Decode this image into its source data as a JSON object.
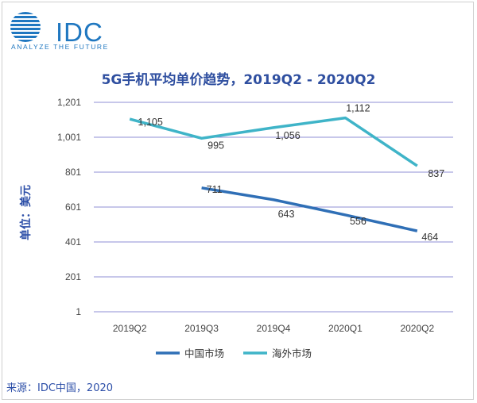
{
  "logo": {
    "brand": "IDC",
    "tagline": "ANALYZE THE FUTURE"
  },
  "source": "来源：IDC中国，2020",
  "colors": {
    "china": "#2f6fb6",
    "overseas": "#3fb4c8",
    "grid": "#8f8fd6",
    "title": "#2f4fa0"
  },
  "chart_data": {
    "type": "line",
    "title": "5G手机平均单价趋势，2019Q2 - 2020Q2",
    "ylabel": "单位：美元",
    "xlabel": "",
    "categories": [
      "2019Q2",
      "2019Q3",
      "2019Q4",
      "2020Q1",
      "2020Q2"
    ],
    "yticks": [
      1,
      201,
      401,
      601,
      801,
      1001,
      1201
    ],
    "ytick_labels": [
      "1",
      "201",
      "401",
      "601",
      "801",
      "1,001",
      "1,201"
    ],
    "ylim": [
      1,
      1201
    ],
    "grid": true,
    "legend": "bottom",
    "series": [
      {
        "name": "中国市场",
        "values": [
          null,
          711,
          643,
          556,
          464
        ],
        "labels": [
          "",
          "711",
          "643",
          "556",
          "464"
        ],
        "color": "#2f6fb6"
      },
      {
        "name": "海外市场",
        "values": [
          1105,
          995,
          1056,
          1112,
          837
        ],
        "labels": [
          "1,105",
          "995",
          "1,056",
          "1,112",
          "837"
        ],
        "color": "#3fb4c8"
      }
    ]
  }
}
